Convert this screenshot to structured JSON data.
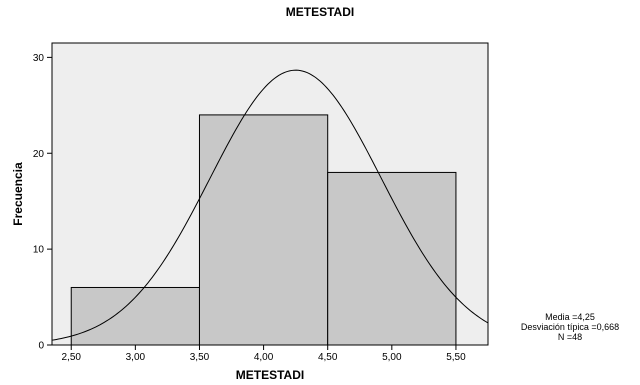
{
  "chart_data": {
    "type": "bar",
    "title": "METESTADI",
    "xlabel": "METESTADI",
    "ylabel": "Frecuencia",
    "bins": [
      {
        "start": 2.5,
        "end": 3.5,
        "value": 6
      },
      {
        "start": 3.5,
        "end": 4.5,
        "value": 24
      },
      {
        "start": 4.5,
        "end": 5.5,
        "value": 18
      }
    ],
    "xticks": [
      2.5,
      3.0,
      3.5,
      4.0,
      4.5,
      5.0,
      5.5
    ],
    "xtick_labels": [
      "2,50",
      "3,00",
      "3,50",
      "4,00",
      "4,50",
      "5,00",
      "5,50"
    ],
    "yticks": [
      0,
      10,
      20,
      30
    ],
    "ytick_labels": [
      "0",
      "10",
      "20",
      "30"
    ],
    "xlim": [
      2.35,
      5.75
    ],
    "ylim": [
      0,
      31.5
    ],
    "normal_curve": {
      "mean": 4.25,
      "sd": 0.668,
      "n": 48,
      "bin_width": 1
    },
    "stats": {
      "media": "Media =4,25",
      "desviacion": "Desviación típica =0,668",
      "n": "N =48"
    },
    "colors": {
      "plot_bg": "#eeeeee",
      "bar_fill": "#c8c8c8",
      "stroke": "#000000"
    }
  }
}
